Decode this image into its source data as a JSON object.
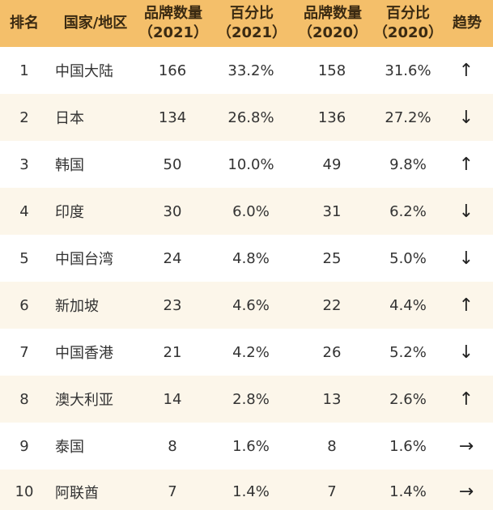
{
  "header": {
    "rank": "排名",
    "region": "国家/地区",
    "brands_2021_l1": "品牌数量",
    "brands_2021_l2": "（2021）",
    "pct_2021_l1": "百分比",
    "pct_2021_l2": "（2021）",
    "brands_2020_l1": "品牌数量",
    "brands_2020_l2": "（2020）",
    "pct_2020_l1": "百分比",
    "pct_2020_l2": "（2020）",
    "trend": "趋势"
  },
  "rows": [
    {
      "rank": "1",
      "region": "中国大陆",
      "b21": "166",
      "p21": "33.2%",
      "b20": "158",
      "p20": "31.6%",
      "trend": "↑"
    },
    {
      "rank": "2",
      "region": "日本",
      "b21": "134",
      "p21": "26.8%",
      "b20": "136",
      "p20": "27.2%",
      "trend": "↓"
    },
    {
      "rank": "3",
      "region": "韩国",
      "b21": "50",
      "p21": "10.0%",
      "b20": "49",
      "p20": "9.8%",
      "trend": "↑"
    },
    {
      "rank": "4",
      "region": "印度",
      "b21": "30",
      "p21": "6.0%",
      "b20": "31",
      "p20": "6.2%",
      "trend": "↓"
    },
    {
      "rank": "5",
      "region": "中国台湾",
      "b21": "24",
      "p21": "4.8%",
      "b20": "25",
      "p20": "5.0%",
      "trend": "↓"
    },
    {
      "rank": "6",
      "region": "新加坡",
      "b21": "23",
      "p21": "4.6%",
      "b20": "22",
      "p20": "4.4%",
      "trend": "↑"
    },
    {
      "rank": "7",
      "region": "中国香港",
      "b21": "21",
      "p21": "4.2%",
      "b20": "26",
      "p20": "5.2%",
      "trend": "↓"
    },
    {
      "rank": "8",
      "region": "澳大利亚",
      "b21": "14",
      "p21": "2.8%",
      "b20": "13",
      "p20": "2.6%",
      "trend": "↑"
    },
    {
      "rank": "9",
      "region": "泰国",
      "b21": "8",
      "p21": "1.6%",
      "b20": "8",
      "p20": "1.6%",
      "trend": "→"
    },
    {
      "rank": "10",
      "region": "阿联酋",
      "b21": "7",
      "p21": "1.4%",
      "b20": "7",
      "p20": "1.4%",
      "trend": "→"
    }
  ],
  "colors": {
    "header_bg": "#f4bf6a",
    "row_alt_bg": "#fcf6ea",
    "row_bg": "#ffffff"
  }
}
